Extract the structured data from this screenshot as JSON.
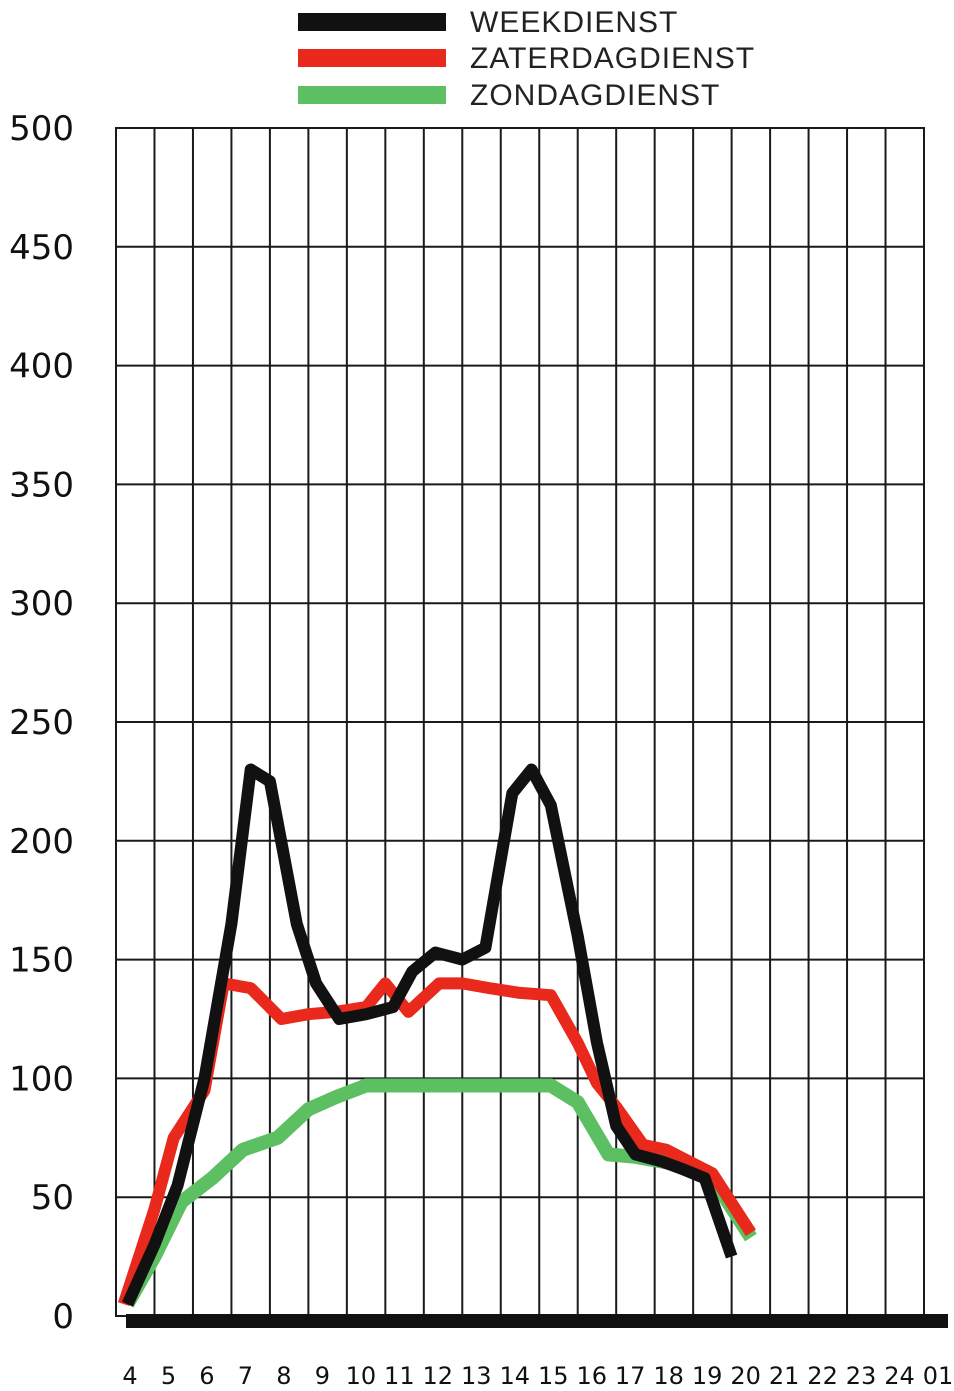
{
  "chart_data": {
    "type": "line",
    "title": "",
    "xlabel": "",
    "ylabel": "",
    "x": [
      "4",
      "5",
      "6",
      "7",
      "8",
      "9",
      "10",
      "11",
      "12",
      "13",
      "14",
      "15",
      "16",
      "17",
      "18",
      "19",
      "20",
      "21",
      "22",
      "23",
      "24",
      "01"
    ],
    "ylim": [
      0,
      500
    ],
    "yticks": [
      0,
      50,
      100,
      150,
      200,
      250,
      300,
      350,
      400,
      450,
      500
    ],
    "grid": true,
    "legend": "top",
    "series": [
      {
        "name": "WEEKDIENST",
        "color": "#111111",
        "points": [
          [
            4.3,
            5
          ],
          [
            5,
            30
          ],
          [
            5.6,
            55
          ],
          [
            6.3,
            100
          ],
          [
            7,
            165
          ],
          [
            7.5,
            230
          ],
          [
            8,
            225
          ],
          [
            8.7,
            165
          ],
          [
            9.2,
            140
          ],
          [
            9.8,
            125
          ],
          [
            10.5,
            127
          ],
          [
            11.2,
            130
          ],
          [
            11.7,
            145
          ],
          [
            12.3,
            153
          ],
          [
            13,
            150
          ],
          [
            13.6,
            155
          ],
          [
            14.3,
            220
          ],
          [
            14.8,
            230
          ],
          [
            15.3,
            215
          ],
          [
            16,
            160
          ],
          [
            16.5,
            115
          ],
          [
            17,
            80
          ],
          [
            17.5,
            68
          ],
          [
            18.2,
            65
          ],
          [
            18.7,
            62
          ],
          [
            19.3,
            58
          ],
          [
            20,
            25
          ]
        ]
      },
      {
        "name": "ZATERDAGDIENST",
        "color": "#e8291c",
        "points": [
          [
            4.2,
            5
          ],
          [
            5,
            45
          ],
          [
            5.5,
            75
          ],
          [
            6.3,
            95
          ],
          [
            6.8,
            140
          ],
          [
            7.5,
            138
          ],
          [
            8.3,
            125
          ],
          [
            9,
            127
          ],
          [
            9.7,
            128
          ],
          [
            10.5,
            130
          ],
          [
            11,
            140
          ],
          [
            11.6,
            128
          ],
          [
            12.4,
            140
          ],
          [
            13,
            140
          ],
          [
            13.7,
            138
          ],
          [
            14.5,
            136
          ],
          [
            15.3,
            135
          ],
          [
            16,
            115
          ],
          [
            16.5,
            98
          ],
          [
            17,
            88
          ],
          [
            17.7,
            72
          ],
          [
            18.3,
            70
          ],
          [
            18.9,
            65
          ],
          [
            19.5,
            60
          ],
          [
            20.5,
            35
          ]
        ]
      },
      {
        "name": "ZONDAGDIENST",
        "color": "#5cbf62",
        "points": [
          [
            4.3,
            5
          ],
          [
            5,
            25
          ],
          [
            5.7,
            48
          ],
          [
            6.5,
            58
          ],
          [
            7.3,
            70
          ],
          [
            8.2,
            75
          ],
          [
            9,
            87
          ],
          [
            9.7,
            92
          ],
          [
            10.5,
            97
          ],
          [
            11.5,
            97
          ],
          [
            12.5,
            97
          ],
          [
            13.5,
            97
          ],
          [
            14.5,
            97
          ],
          [
            15.3,
            97
          ],
          [
            16,
            90
          ],
          [
            16.8,
            68
          ],
          [
            17.5,
            67
          ],
          [
            18.2,
            65
          ],
          [
            18.8,
            63
          ],
          [
            19.5,
            58
          ],
          [
            20.5,
            33
          ]
        ]
      }
    ]
  }
}
